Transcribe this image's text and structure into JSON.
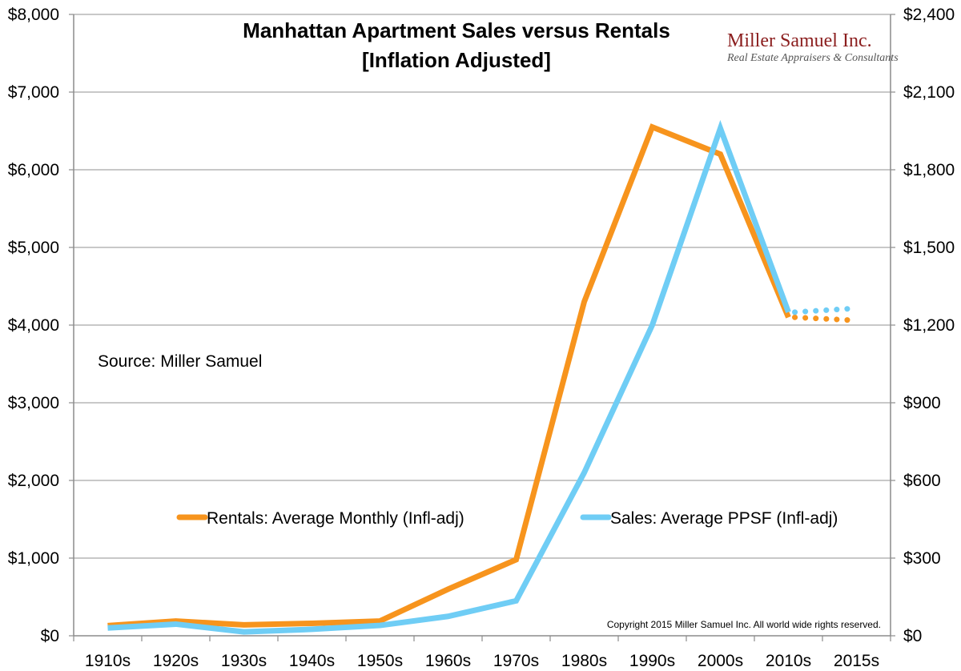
{
  "chart_data": {
    "type": "line",
    "title": "Manhattan Apartment Sales versus Rentals",
    "subtitle": "[Inflation Adjusted]",
    "categories": [
      "1910s",
      "1920s",
      "1930s",
      "1940s",
      "1950s",
      "1960s",
      "1970s",
      "1980s",
      "1990s",
      "2000s",
      "2010s",
      "2015s"
    ],
    "y_left": {
      "min": 0,
      "max": 8000,
      "ticks": [
        "$0",
        "$1,000",
        "$2,000",
        "$3,000",
        "$4,000",
        "$5,000",
        "$6,000",
        "$7,000",
        "$8,000"
      ]
    },
    "y_right": {
      "min": 0,
      "max": 2400,
      "ticks": [
        "$0",
        "$300",
        "$600",
        "$900",
        "$1,200",
        "$1,500",
        "$1,800",
        "$2,100",
        "$2,400"
      ]
    },
    "grid": true,
    "series": [
      {
        "name": "Rentals: Average Monthly (Infl-adj)",
        "axis": "left",
        "color": "#f7941d",
        "values": [
          130,
          190,
          140,
          160,
          190,
          600,
          980,
          4300,
          6550,
          6200,
          4100,
          null
        ],
        "projected": [
          4100,
          4060
        ],
        "projected_from_index": 10
      },
      {
        "name": "Sales: Average PPSF (Infl-adj)",
        "axis": "right",
        "color": "#6fcdf5",
        "values": [
          30,
          45,
          15,
          25,
          40,
          75,
          135,
          630,
          1200,
          1960,
          1250,
          null
        ],
        "projected": [
          1250,
          1265
        ],
        "projected_from_index": 10
      }
    ],
    "annotations": {
      "source": "Source: Miller Samuel",
      "copyright": "Copyright 2015 Miller Samuel Inc.  All world wide rights reserved."
    },
    "logo": {
      "name": "Miller Samuel Inc.",
      "tagline": "Real Estate Appraisers & Consultants"
    }
  }
}
